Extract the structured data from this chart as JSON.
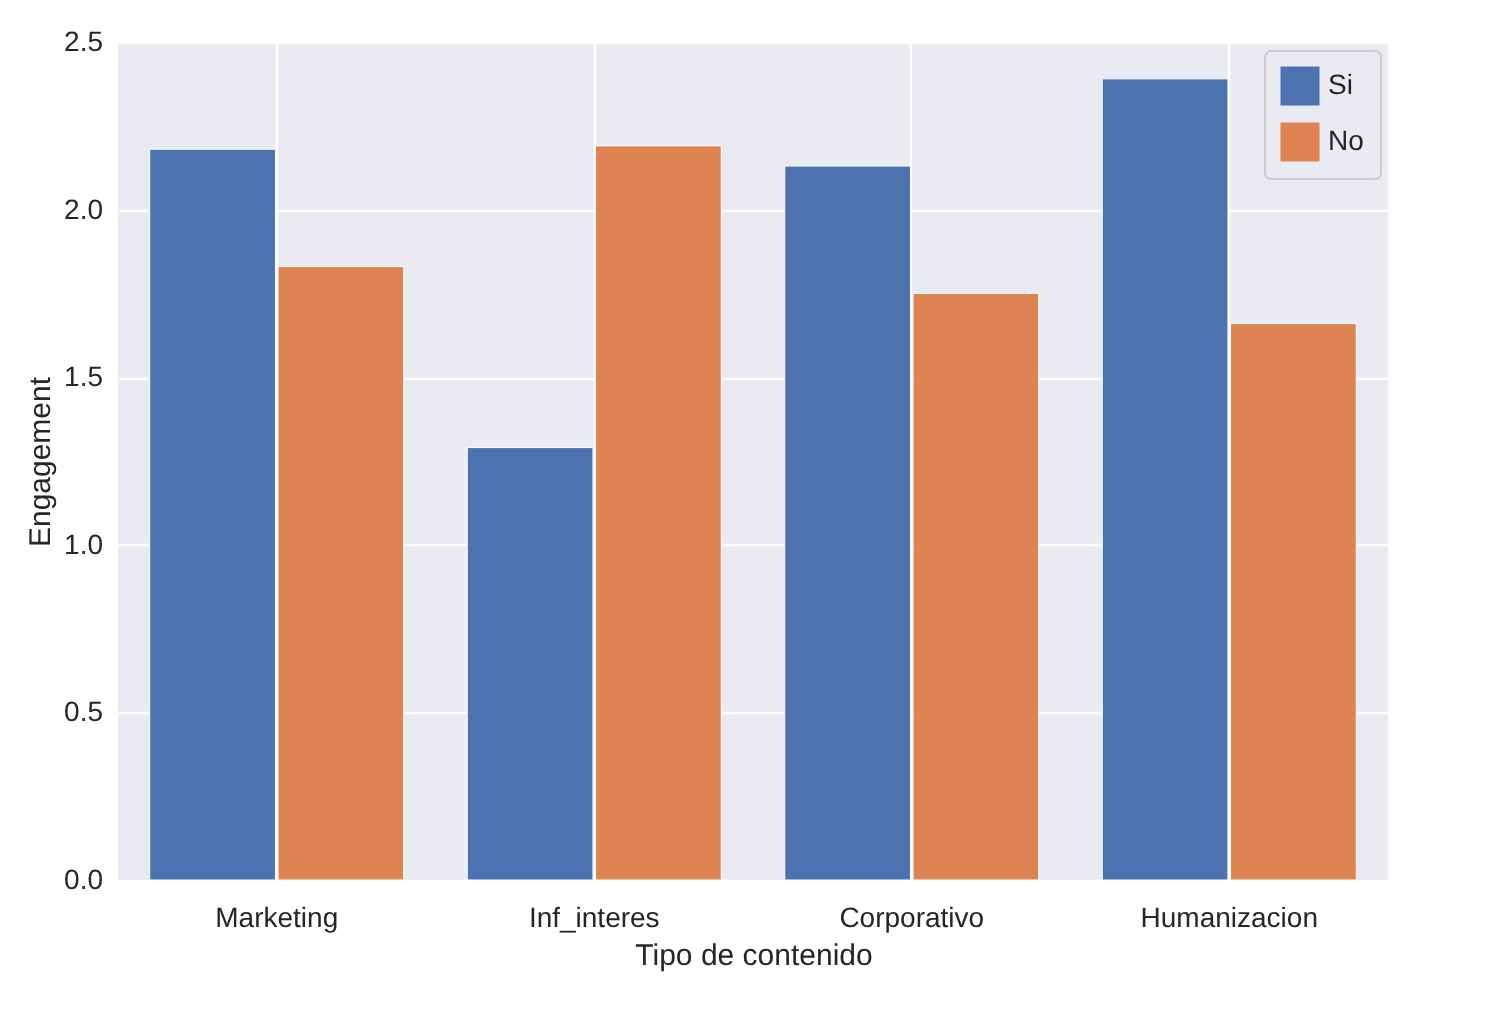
{
  "chart_data": {
    "type": "bar",
    "xlabel": "Tipo de contenido",
    "ylabel": "Engagement",
    "categories": [
      "Marketing",
      "Inf_interes",
      "Corporativo",
      "Humanizacion"
    ],
    "series": [
      {
        "name": "Si",
        "color": "#4c72b0",
        "values": [
          2.18,
          1.29,
          2.13,
          2.39
        ]
      },
      {
        "name": "No",
        "color": "#dd8452",
        "values": [
          1.83,
          2.19,
          1.75,
          1.66
        ]
      }
    ],
    "ylim": [
      0,
      2.5
    ],
    "yticks": [
      {
        "value": 0,
        "label": "0.0"
      },
      0.5,
      {
        "value": 1,
        "label": "1.0"
      },
      1.5,
      {
        "value": 2,
        "label": "2.0"
      },
      2.5
    ],
    "grid": true,
    "legend": "top right"
  }
}
